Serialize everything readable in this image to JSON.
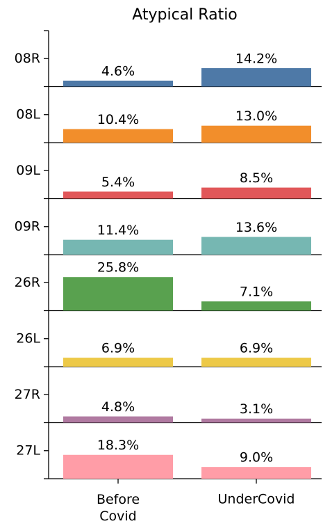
{
  "chart_data": {
    "type": "bar",
    "title": "Atypical Ratio",
    "categories": [
      "Before Covid",
      "UnderCovid"
    ],
    "ylim": [
      0,
      43
    ],
    "series": [
      {
        "name": "08R",
        "color": "#4e79a7",
        "values": [
          4.6,
          14.2
        ],
        "value_labels": [
          "4.6%",
          "14.2%"
        ]
      },
      {
        "name": "08L",
        "color": "#f28e2b",
        "values": [
          10.4,
          13.0
        ],
        "value_labels": [
          "10.4%",
          "13.0%"
        ]
      },
      {
        "name": "09L",
        "color": "#e15759",
        "values": [
          5.4,
          8.5
        ],
        "value_labels": [
          "5.4%",
          "8.5%"
        ]
      },
      {
        "name": "09R",
        "color": "#76b7b2",
        "values": [
          11.4,
          13.6
        ],
        "value_labels": [
          "11.4%",
          "13.6%"
        ]
      },
      {
        "name": "26R",
        "color": "#59a14f",
        "values": [
          25.8,
          7.1
        ],
        "value_labels": [
          "25.8%",
          "7.1%"
        ]
      },
      {
        "name": "26L",
        "color": "#edc948",
        "values": [
          6.9,
          6.9
        ],
        "value_labels": [
          "6.9%",
          "6.9%"
        ]
      },
      {
        "name": "27R",
        "color": "#b07aa1",
        "values": [
          4.8,
          3.1
        ],
        "value_labels": [
          "4.8%",
          "3.1%"
        ]
      },
      {
        "name": "27L",
        "color": "#ff9da7",
        "values": [
          18.3,
          9.0
        ],
        "value_labels": [
          "18.3%",
          "9.0%"
        ]
      }
    ]
  }
}
